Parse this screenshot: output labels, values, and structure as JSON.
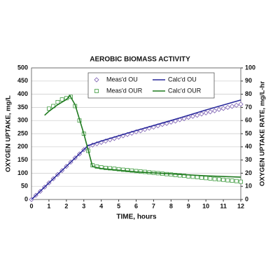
{
  "chart_data": {
    "type": "line",
    "title": "AEROBIC BIOMASS ACTIVITY",
    "x_label": "TIME, hours",
    "y_label": "OXYGEN UPTAKE, mg/L",
    "y2_label": "OXYGEN UPTAKE RATE, mg/L-hr",
    "xlim": [
      0,
      12
    ],
    "xticks": [
      0,
      1,
      2,
      3,
      4,
      5,
      6,
      7,
      8,
      9,
      10,
      11,
      12
    ],
    "ylim": [
      0,
      500
    ],
    "yticks": [
      0,
      50,
      100,
      150,
      200,
      250,
      300,
      350,
      400,
      450,
      500
    ],
    "y2lim": [
      0,
      100
    ],
    "y2ticks": [
      0,
      10,
      20,
      30,
      40,
      50,
      60,
      70,
      80,
      90,
      100
    ],
    "grid": true,
    "legend": "top",
    "series": [
      {
        "name": "Meas'd OU",
        "color": "#7a5cb0",
        "marker": "diamond",
        "axis": "y",
        "x": [
          0,
          0.25,
          0.5,
          0.75,
          1,
          1.25,
          1.5,
          1.75,
          2,
          2.25,
          2.5,
          2.75,
          3,
          3.25,
          3.5,
          3.75,
          4,
          4.25,
          4.5,
          4.75,
          5,
          5.25,
          5.5,
          5.75,
          6,
          6.25,
          6.5,
          6.75,
          7,
          7.25,
          7.5,
          7.75,
          8,
          8.25,
          8.5,
          8.75,
          9,
          9.25,
          9.5,
          9.75,
          10,
          10.25,
          10.5,
          10.75,
          11,
          11.25,
          11.5,
          11.75,
          12
        ],
        "values": [
          0,
          16,
          31,
          47,
          63,
          79,
          95,
          110,
          126,
          142,
          158,
          173,
          189,
          200,
          207,
          212,
          217,
          222,
          227,
          232,
          237,
          242,
          247,
          252,
          257,
          261,
          266,
          271,
          275,
          280,
          285,
          289,
          294,
          298,
          303,
          307,
          312,
          316,
          320,
          325,
          329,
          333,
          337,
          342,
          346,
          350,
          354,
          358,
          362
        ]
      },
      {
        "name": "Calc'd OU",
        "color": "#2a2a9c",
        "marker": "none",
        "axis": "y",
        "x": [
          0,
          3.25,
          4,
          6,
          8,
          10,
          12
        ],
        "values": [
          0,
          205,
          222,
          262,
          300,
          340,
          378
        ]
      },
      {
        "name": "Meas'd OUR",
        "color": "#3d9a3d",
        "marker": "square",
        "axis": "y2",
        "x": [
          1,
          1.25,
          1.5,
          1.75,
          2,
          2.25,
          2.5,
          2.75,
          3,
          3.25,
          3.5,
          3.75,
          4,
          4.25,
          4.5,
          4.75,
          5,
          5.25,
          5.5,
          5.75,
          6,
          6.25,
          6.5,
          6.75,
          7,
          7.25,
          7.5,
          7.75,
          8,
          8.25,
          8.5,
          8.75,
          9,
          9.25,
          9.5,
          9.75,
          10,
          10.25,
          10.5,
          10.75,
          11,
          11.25,
          11.5,
          11.75,
          12
        ],
        "values": [
          69,
          71,
          74,
          76,
          77,
          78,
          71,
          60,
          50,
          37,
          26,
          25,
          24.5,
          24,
          23.7,
          23.4,
          23,
          22.6,
          22.3,
          22,
          21.6,
          21.3,
          21,
          20.6,
          20.3,
          20,
          19.6,
          19.3,
          19,
          18.6,
          18.3,
          18,
          17.6,
          17.3,
          17,
          16.6,
          16.3,
          16,
          15.6,
          15.3,
          15,
          14.6,
          14.3,
          14,
          13.5
        ]
      },
      {
        "name": "Calc'd OUR",
        "color": "#1f7a1f",
        "marker": "none",
        "axis": "y2",
        "x": [
          0.75,
          1,
          1.5,
          2,
          2.2,
          2.5,
          3,
          3.5,
          4,
          6,
          8,
          10,
          12
        ],
        "values": [
          64,
          67,
          72,
          76,
          79,
          72,
          50,
          25,
          23.5,
          21,
          19.5,
          18,
          17
        ]
      }
    ]
  }
}
